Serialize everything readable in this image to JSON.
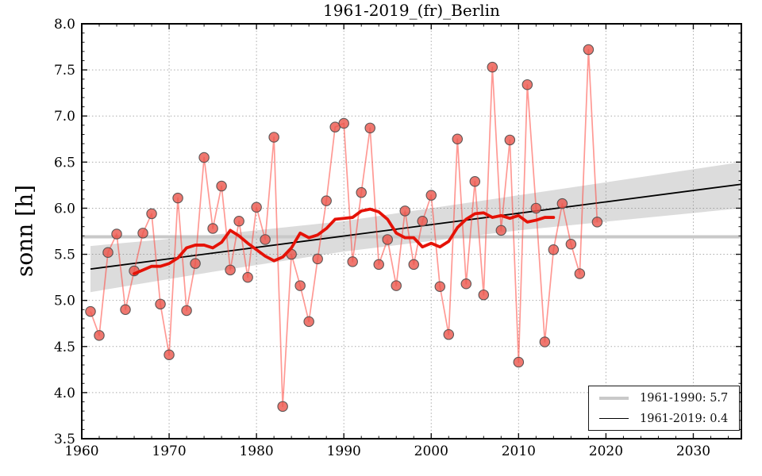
{
  "chart_data": {
    "type": "line",
    "title": "1961-2019_(fr)_Berlin",
    "xlabel": "",
    "ylabel": "sonn [h]",
    "xlim": [
      1960,
      2035.5
    ],
    "ylim": [
      3.5,
      8.0
    ],
    "x_major_ticks": [
      1960,
      1970,
      1980,
      1990,
      2000,
      2010,
      2020,
      2030
    ],
    "y_major_ticks": [
      3.5,
      4.0,
      4.5,
      5.0,
      5.5,
      6.0,
      6.5,
      7.0,
      7.5,
      8.0
    ],
    "x_minor_step": 2,
    "y_minor_step": 0.1,
    "grid": {
      "show": true,
      "style": "dotted",
      "which": "major",
      "color": "#ababab"
    },
    "legend_position": "lower right",
    "series": [
      {
        "name": "annual_sunshine_hours",
        "type": "line+markers",
        "line_color": "rgba(255,70,60,0.55)",
        "marker_fill": "rgba(235,85,75,0.8)",
        "marker_edge": "rgba(75,75,75,0.9)",
        "x": [
          1961,
          1962,
          1963,
          1964,
          1965,
          1966,
          1967,
          1968,
          1969,
          1970,
          1971,
          1972,
          1973,
          1974,
          1975,
          1976,
          1977,
          1978,
          1979,
          1980,
          1981,
          1982,
          1983,
          1984,
          1985,
          1986,
          1987,
          1988,
          1989,
          1990,
          1991,
          1992,
          1993,
          1994,
          1995,
          1996,
          1997,
          1998,
          1999,
          2000,
          2001,
          2002,
          2003,
          2004,
          2005,
          2006,
          2007,
          2008,
          2009,
          2010,
          2011,
          2012,
          2013,
          2014,
          2015,
          2016,
          2017,
          2018,
          2019
        ],
        "y": [
          4.88,
          4.62,
          5.52,
          5.72,
          4.9,
          5.32,
          5.73,
          5.94,
          4.96,
          4.41,
          6.11,
          4.89,
          5.4,
          6.55,
          5.78,
          6.24,
          5.33,
          5.86,
          5.25,
          6.01,
          5.66,
          6.77,
          3.85,
          5.5,
          5.16,
          4.77,
          5.45,
          6.08,
          6.88,
          6.92,
          5.42,
          6.17,
          6.87,
          5.39,
          5.66,
          5.16,
          5.97,
          5.39,
          5.86,
          6.14,
          5.15,
          4.63,
          6.75,
          5.18,
          6.29,
          5.06,
          7.53,
          5.76,
          6.74,
          4.33,
          7.34,
          6.0,
          4.55,
          5.55,
          6.05,
          5.61,
          5.29,
          7.72,
          5.85
        ]
      },
      {
        "name": "smoothed_sunshine_hours",
        "type": "line",
        "line_color": "#e51207",
        "x": [
          1966,
          1967,
          1968,
          1969,
          1970,
          1971,
          1972,
          1973,
          1974,
          1975,
          1976,
          1977,
          1978,
          1979,
          1980,
          1981,
          1982,
          1983,
          1984,
          1985,
          1986,
          1987,
          1988,
          1989,
          1990,
          1991,
          1992,
          1993,
          1994,
          1995,
          1996,
          1997,
          1998,
          1999,
          2000,
          2001,
          2002,
          2003,
          2004,
          2005,
          2006,
          2007,
          2008,
          2009,
          2010,
          2011,
          2012,
          2013,
          2014
        ],
        "y": [
          5.29,
          5.33,
          5.37,
          5.37,
          5.4,
          5.46,
          5.57,
          5.6,
          5.6,
          5.57,
          5.63,
          5.76,
          5.7,
          5.62,
          5.55,
          5.48,
          5.43,
          5.47,
          5.57,
          5.73,
          5.68,
          5.71,
          5.78,
          5.88,
          5.89,
          5.9,
          5.97,
          5.99,
          5.96,
          5.88,
          5.73,
          5.68,
          5.68,
          5.58,
          5.62,
          5.58,
          5.64,
          5.79,
          5.88,
          5.94,
          5.95,
          5.9,
          5.92,
          5.89,
          5.92,
          5.85,
          5.87,
          5.9,
          5.9
        ]
      },
      {
        "name": "linear_trend_1961_2019",
        "type": "line",
        "line_color": "#000000",
        "label": "1961-2019: 0.4",
        "x": [
          1961,
          2035.5
        ],
        "y": [
          5.34,
          6.26
        ]
      },
      {
        "name": "reference_mean_1961_1990",
        "type": "hline",
        "line_color": "#c9c9c9",
        "label": "1961-1990: 5.7",
        "y": 5.69
      }
    ],
    "confidence_band": {
      "color": "rgba(130,130,130,0.28)",
      "x": [
        1961,
        1975,
        1990,
        2010,
        2035.5
      ],
      "upper": [
        5.59,
        5.71,
        5.86,
        6.14,
        6.5
      ],
      "lower": [
        5.09,
        5.31,
        5.53,
        5.76,
        6.0
      ]
    },
    "legend": {
      "items": [
        {
          "label": "1961-1990: 5.7",
          "color": "#c9c9c9",
          "line_width": 4.5
        },
        {
          "label": "1961-2019: 0.4",
          "color": "#000000",
          "line_width": 1.6
        }
      ]
    }
  }
}
